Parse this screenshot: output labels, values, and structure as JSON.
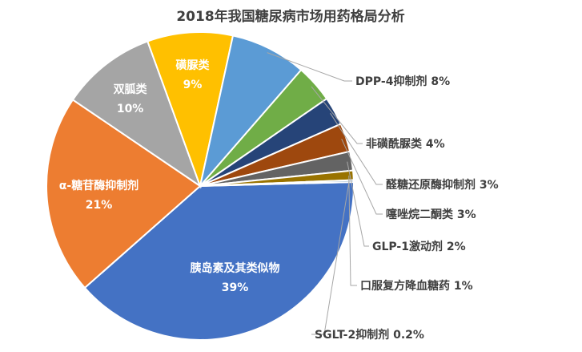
{
  "chart_data": {
    "type": "pie",
    "title": "2018年我国糖尿病市场用药格局分析",
    "slices": [
      {
        "label": "胰岛素及其类似物",
        "value": 39,
        "value_label": "39%",
        "color": "#4472c4"
      },
      {
        "label": "α-糖苷酶抑制剂",
        "value": 21,
        "value_label": "21%",
        "color": "#ed7d31"
      },
      {
        "label": "双胍类",
        "value": 10,
        "value_label": "10%",
        "color": "#a5a5a5"
      },
      {
        "label": "磺脲类",
        "value": 9,
        "value_label": "9%",
        "color": "#ffc000"
      },
      {
        "label": "DPP-4抑制剂",
        "value": 8,
        "value_label": "8%",
        "color": "#5b9bd5"
      },
      {
        "label": "非磺酰脲类",
        "value": 4,
        "value_label": "4%",
        "color": "#70ad47"
      },
      {
        "label": "醛糖还原酶抑制剂",
        "value": 3,
        "value_label": "3%",
        "color": "#264478"
      },
      {
        "label": "噻唑烷二酮类",
        "value": 3,
        "value_label": "3%",
        "color": "#9e480e"
      },
      {
        "label": "GLP-1激动剂",
        "value": 2,
        "value_label": "2%",
        "color": "#636363"
      },
      {
        "label": "口服复方降血糖药",
        "value": 1,
        "value_label": "1%",
        "color": "#997300"
      },
      {
        "label": "SGLT-2抑制剂",
        "value": 0.2,
        "value_label": "0.2%",
        "color": "#255e91"
      }
    ]
  }
}
